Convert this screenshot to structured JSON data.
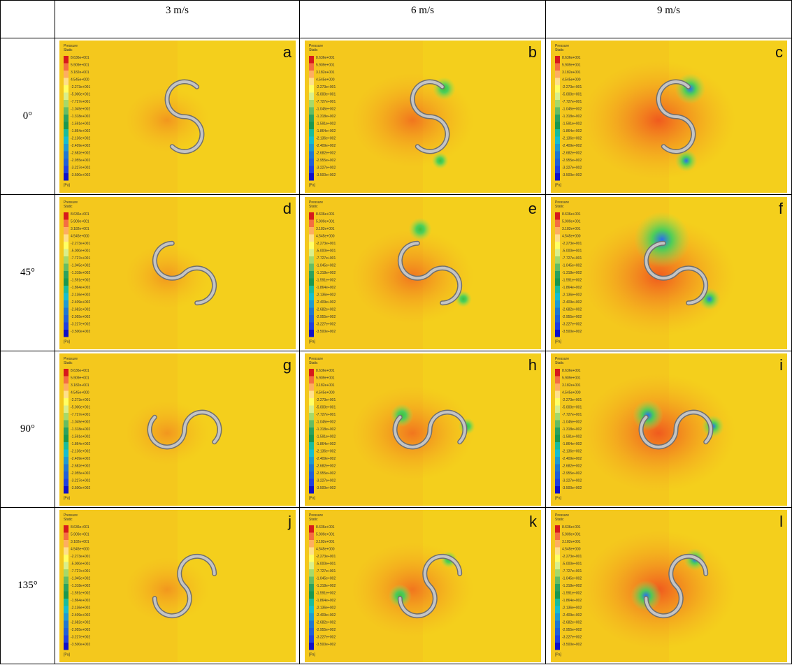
{
  "table": {
    "columns": [
      "3 m/s",
      "6 m/s",
      "9 m/s"
    ],
    "rows": [
      {
        "label": "0°",
        "panels": [
          "a",
          "b",
          "c"
        ]
      },
      {
        "label": "45°",
        "panels": [
          "d",
          "e",
          "f"
        ]
      },
      {
        "label": "90°",
        "panels": [
          "g",
          "h",
          "i"
        ]
      },
      {
        "label": "135°",
        "panels": [
          "j",
          "k",
          "l"
        ]
      }
    ]
  },
  "legend": {
    "title": "Pressure",
    "subtitle": "Static",
    "unit": "[Pa]",
    "levels": [
      "8.636e+001",
      "5.909e+001",
      "3.182e+001",
      "4.545e+000",
      "-2.273e+001",
      "-5.000e+001",
      "-7.727e+001",
      "-1.045e+002",
      "-1.318e+002",
      "-1.591e+002",
      "-1.864e+002",
      "-2.136e+002",
      "-2.409e+002",
      "-2.682e+002",
      "-2.955e+002",
      "-3.227e+002",
      "-3.500e+002"
    ]
  }
}
